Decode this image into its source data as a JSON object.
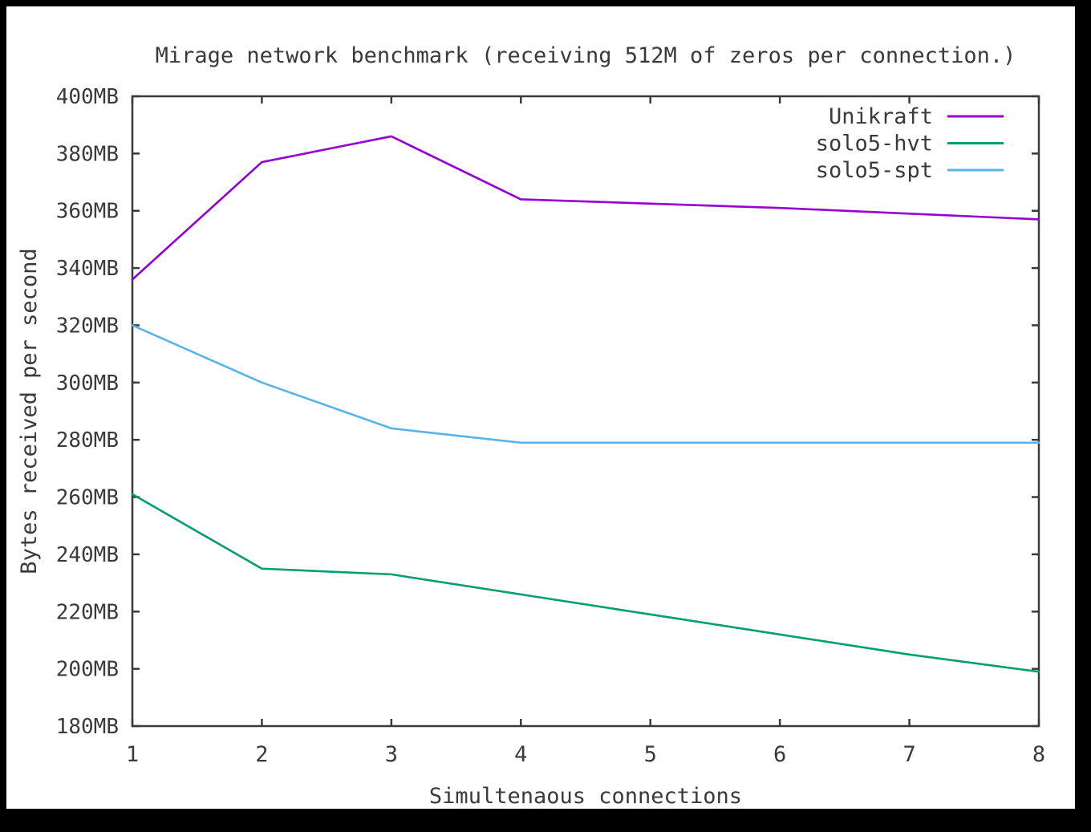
{
  "window": {
    "background": "#000000",
    "canvas_color": "#ffffff"
  },
  "chart_data": {
    "type": "line",
    "title": "Mirage network benchmark (receiving 512M of zeros per connection.)",
    "xlabel": "Simultenaous connections",
    "ylabel": "Bytes received per second",
    "x": [
      1,
      2,
      3,
      4,
      5,
      6,
      7,
      8
    ],
    "xtick_labels": [
      "1",
      "2",
      "3",
      "4",
      "5",
      "6",
      "7",
      "8"
    ],
    "yticks": [
      180,
      200,
      220,
      240,
      260,
      280,
      300,
      320,
      340,
      360,
      380,
      400
    ],
    "ytick_labels": [
      "180MB",
      "200MB",
      "220MB",
      "240MB",
      "260MB",
      "280MB",
      "300MB",
      "320MB",
      "340MB",
      "360MB",
      "380MB",
      "400MB"
    ],
    "xlim": [
      1,
      8
    ],
    "ylim": [
      180,
      400
    ],
    "grid": false,
    "legend_position": "top-right-inside",
    "axis_color": "#3a3a3a",
    "series": [
      {
        "name": "Unikraft",
        "color": "#9400d3",
        "values": [
          336,
          377,
          386,
          364,
          362.5,
          361,
          359,
          357
        ]
      },
      {
        "name": "solo5-hvt",
        "color": "#009e73",
        "values": [
          261,
          235,
          233,
          226,
          219,
          212,
          205,
          199
        ]
      },
      {
        "name": "solo5-spt",
        "color": "#56b4e9",
        "values": [
          320,
          300,
          284,
          279,
          279,
          279,
          279,
          279
        ]
      }
    ]
  }
}
